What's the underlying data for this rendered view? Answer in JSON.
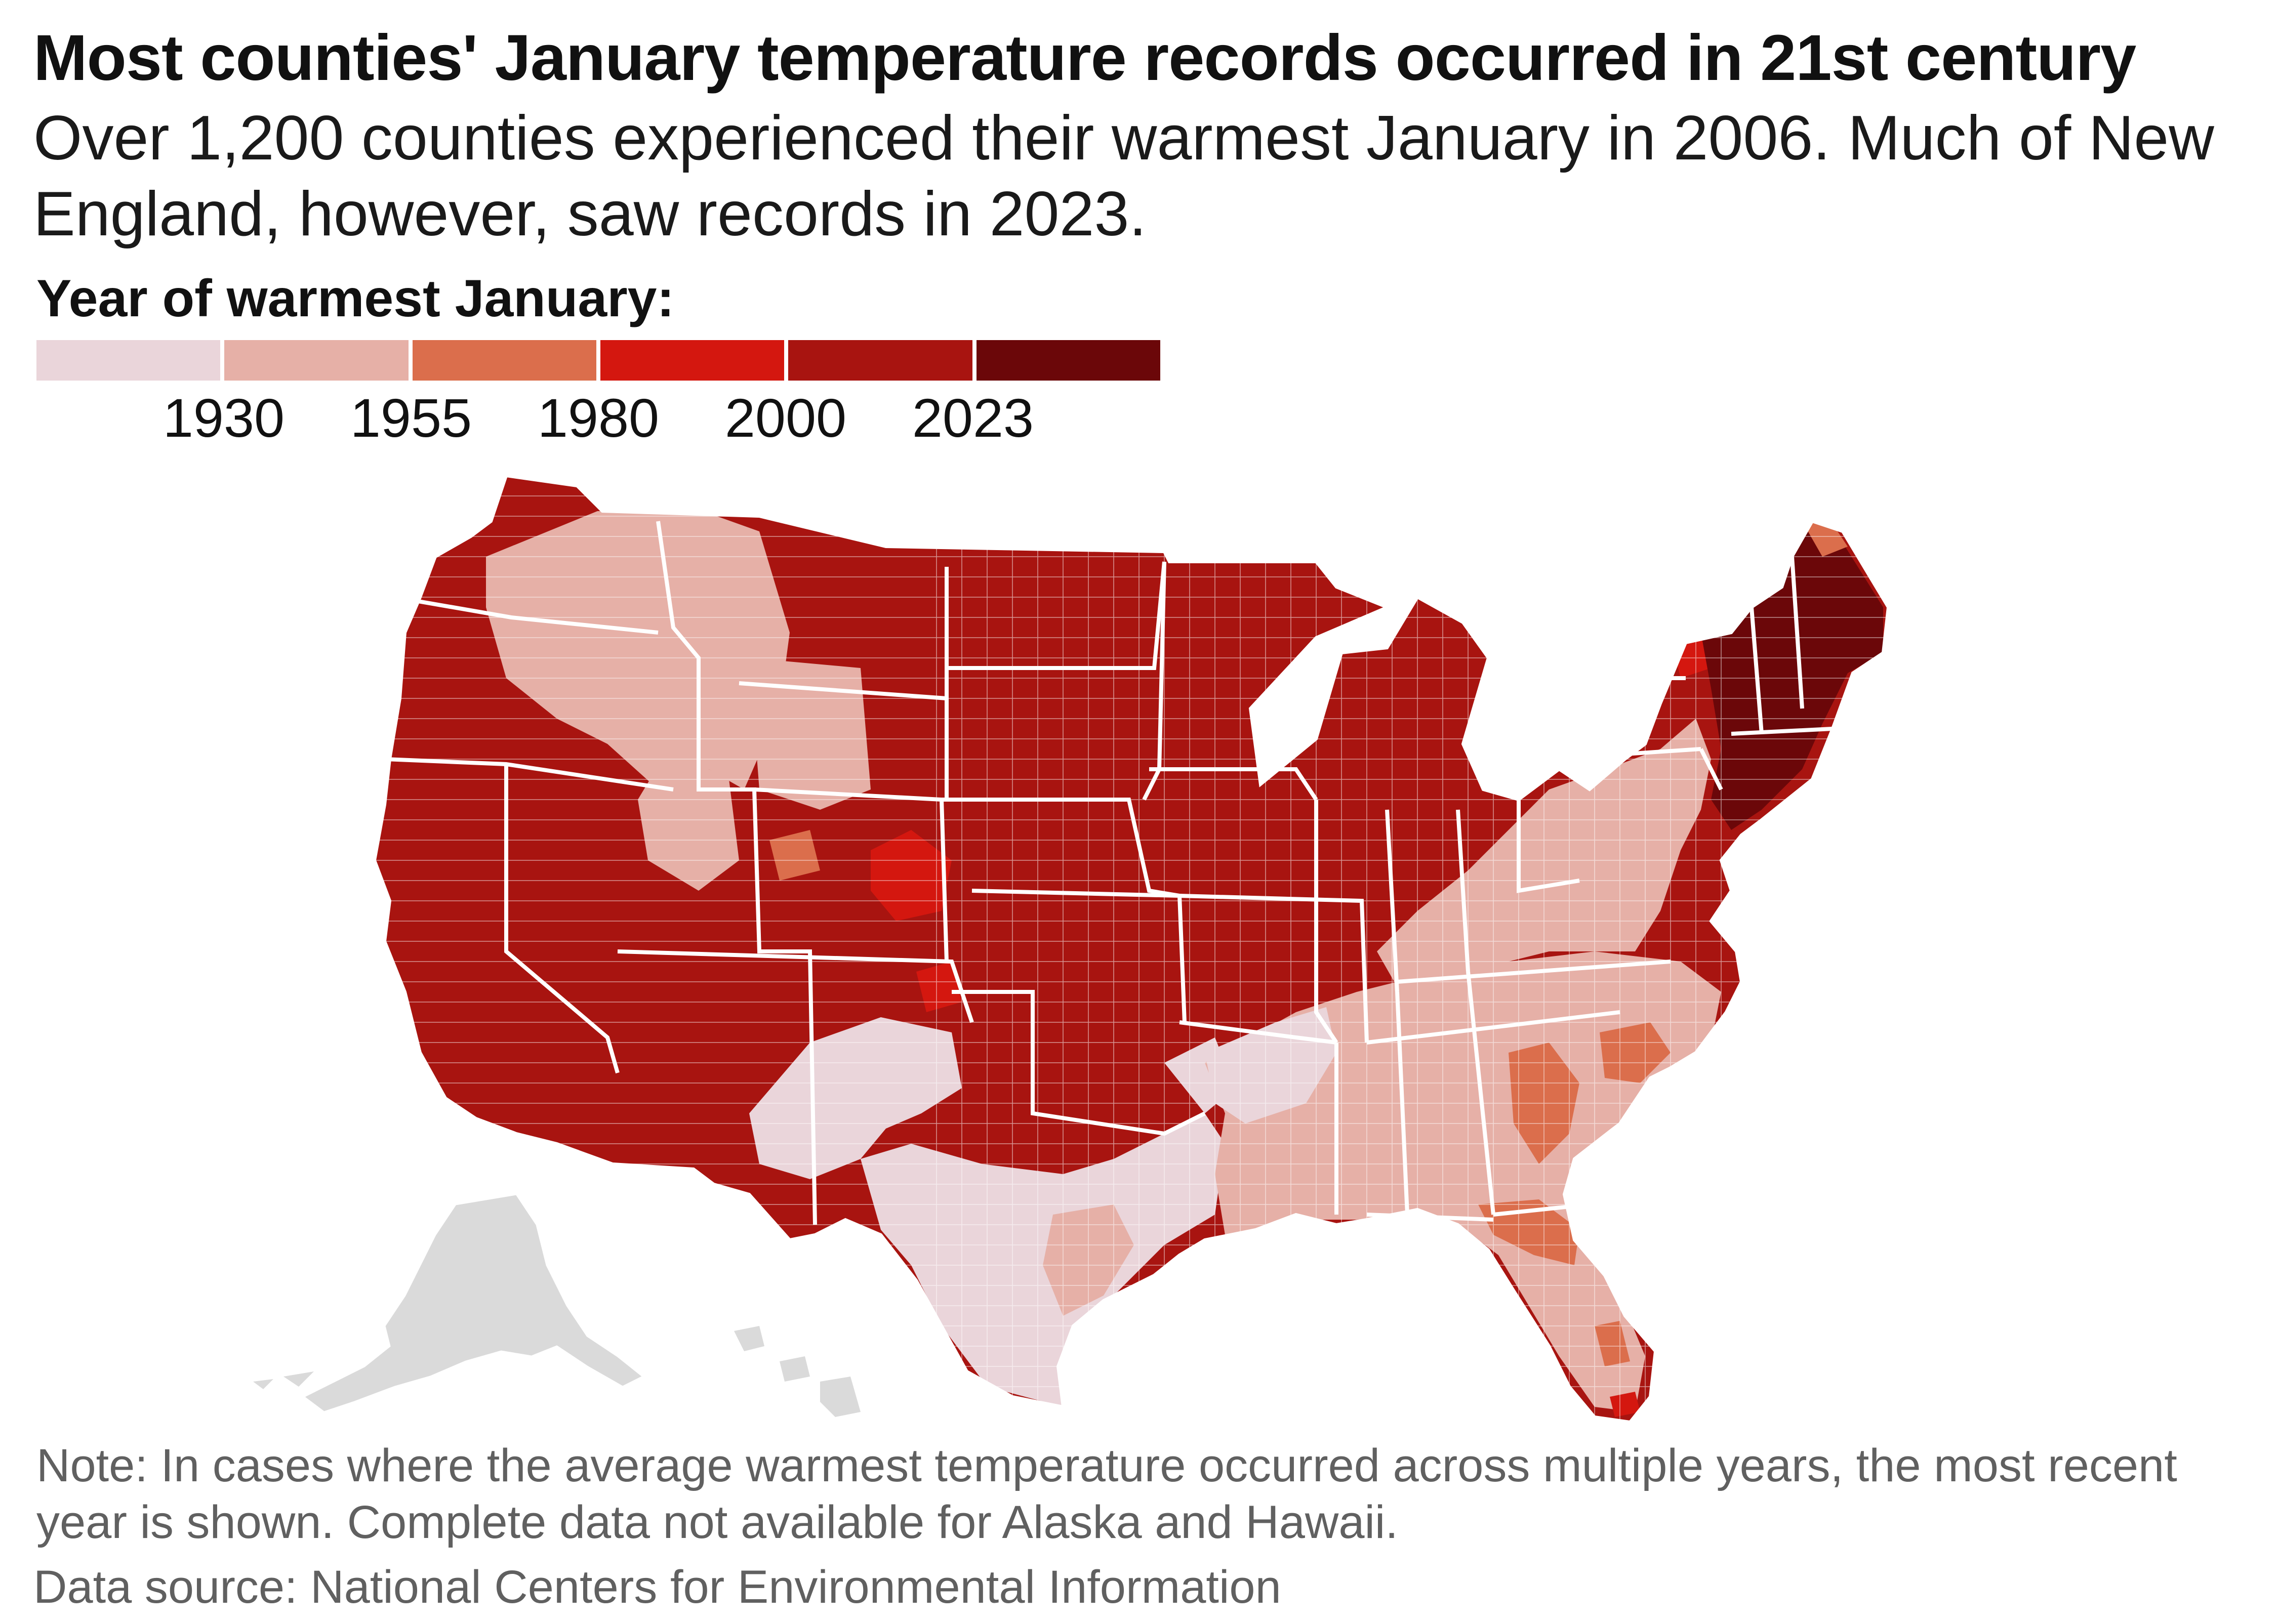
{
  "title": "Most counties' January temperature records occurred in 21st century",
  "subtitle": "Over 1,200 counties experienced their warmest January in 2006. Much of New England, however, saw records in 2023.",
  "legend": {
    "title": "Year of warmest January:",
    "ticks": [
      "1930",
      "1955",
      "1980",
      "2000",
      "2023"
    ],
    "colors": [
      "#ead5da",
      "#e6b0a7",
      "#db6e4c",
      "#d4170f",
      "#a81410",
      "#6b0709"
    ]
  },
  "no_data_color": "#dadada",
  "note": "Note: In cases where the average warmest temperature occurred across multiple years, the most recent year is shown. Complete data not available for Alaska and Hawaii.",
  "source": "Data source: National Centers for Environmental Information"
}
